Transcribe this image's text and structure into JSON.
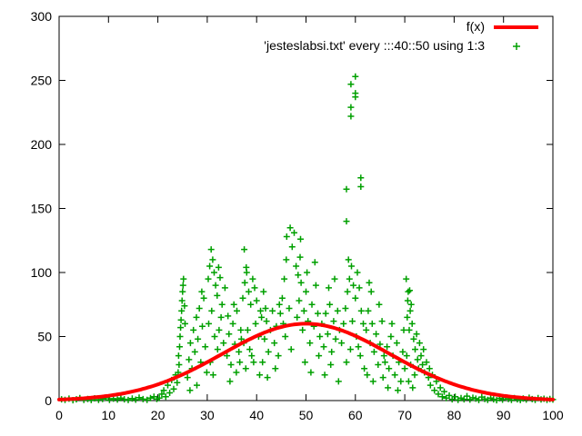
{
  "window": {
    "background": "#ffffff",
    "foreground": "#000000"
  },
  "chart_data": {
    "type": "scatter",
    "title": "",
    "xlabel": "",
    "ylabel": "",
    "xlim": [
      0,
      100
    ],
    "ylim": [
      0,
      300
    ],
    "x_ticks": [
      0,
      10,
      20,
      30,
      40,
      50,
      60,
      70,
      80,
      90,
      100
    ],
    "y_ticks": [
      0,
      50,
      100,
      150,
      200,
      250,
      300
    ],
    "grid": false,
    "legend_position": "top-right-inside",
    "series": [
      {
        "name": "f(x)",
        "type": "line",
        "color": "#ff0000",
        "line_width": 4,
        "curve": {
          "form": "gaussian",
          "amplitude": 60,
          "mean": 50,
          "sigma": 17
        }
      },
      {
        "name": "'jesteslabsi.txt' every :::40::50 using 1:3",
        "type": "points",
        "marker": "plus",
        "color": "#00a000",
        "marker_size": 7,
        "points": [
          [
            0.5,
            1
          ],
          [
            1.2,
            0.5
          ],
          [
            2,
            1.5
          ],
          [
            2.8,
            0.3
          ],
          [
            3.5,
            1
          ],
          [
            4.2,
            2
          ],
          [
            5,
            0.5
          ],
          [
            5.8,
            1.2
          ],
          [
            6.5,
            0.4
          ],
          [
            7.2,
            1.8
          ],
          [
            8,
            0.6
          ],
          [
            8.8,
            1.3
          ],
          [
            9.5,
            2.2
          ],
          [
            10.2,
            0.5
          ],
          [
            11,
            1.5
          ],
          [
            11.8,
            0.8
          ],
          [
            12.5,
            2
          ],
          [
            13.2,
            1
          ],
          [
            14,
            0.4
          ],
          [
            14.8,
            1.6
          ],
          [
            15.5,
            0.7
          ],
          [
            16.2,
            2.3
          ],
          [
            17,
            1.1
          ],
          [
            17.8,
            0.5
          ],
          [
            18.5,
            1.9
          ],
          [
            19.2,
            3
          ],
          [
            19.8,
            1.2
          ],
          [
            20.3,
            2
          ],
          [
            20.8,
            5
          ],
          [
            21.2,
            8
          ],
          [
            21.6,
            3
          ],
          [
            22,
            12
          ],
          [
            22.4,
            6
          ],
          [
            22.8,
            16
          ],
          [
            23.2,
            9
          ],
          [
            23.6,
            20
          ],
          [
            23.9,
            14
          ],
          [
            24.1,
            22
          ],
          [
            24.2,
            35
          ],
          [
            24.3,
            28
          ],
          [
            24.4,
            42
          ],
          [
            24.5,
            50
          ],
          [
            24.6,
            57
          ],
          [
            24.7,
            63
          ],
          [
            24.8,
            70
          ],
          [
            24.9,
            78
          ],
          [
            25,
            85
          ],
          [
            25.1,
            90
          ],
          [
            25.2,
            95
          ],
          [
            25.4,
            74
          ],
          [
            25.5,
            60
          ],
          [
            26,
            18
          ],
          [
            26.3,
            32
          ],
          [
            26.5,
            8
          ],
          [
            26.6,
            45
          ],
          [
            26.9,
            25
          ],
          [
            27.2,
            55
          ],
          [
            27.5,
            38
          ],
          [
            27.8,
            65
          ],
          [
            27.9,
            12
          ],
          [
            28.1,
            48
          ],
          [
            28.4,
            72
          ],
          [
            28.7,
            30
          ],
          [
            28.9,
            85
          ],
          [
            29,
            58
          ],
          [
            29.3,
            80
          ],
          [
            29.6,
            42
          ],
          [
            29.9,
            22
          ],
          [
            30.2,
            95
          ],
          [
            30.3,
            60
          ],
          [
            30.5,
            105
          ],
          [
            30.6,
            30
          ],
          [
            30.8,
            118
          ],
          [
            30.9,
            70
          ],
          [
            31.1,
            110
          ],
          [
            31.2,
            20
          ],
          [
            31.4,
            100
          ],
          [
            31.5,
            50
          ],
          [
            31.7,
            90
          ],
          [
            32,
            82
          ],
          [
            32.1,
            40
          ],
          [
            32.3,
            104
          ],
          [
            32.4,
            55
          ],
          [
            32.6,
            96
          ],
          [
            32.8,
            65
          ],
          [
            33,
            75
          ],
          [
            33.3,
            45
          ],
          [
            33.6,
            88
          ],
          [
            34,
            35
          ],
          [
            34.2,
            66
          ],
          [
            34.4,
            52
          ],
          [
            34.6,
            15
          ],
          [
            34.8,
            28
          ],
          [
            35.2,
            60
          ],
          [
            35.4,
            75
          ],
          [
            35.6,
            44
          ],
          [
            35.9,
            22
          ],
          [
            36,
            70
          ],
          [
            36.4,
            38
          ],
          [
            36.6,
            30
          ],
          [
            36.8,
            55
          ],
          [
            36.9,
            48
          ],
          [
            37.2,
            80
          ],
          [
            37.4,
            45
          ],
          [
            37.5,
            118
          ],
          [
            37.6,
            92
          ],
          [
            37.8,
            25
          ],
          [
            37.9,
            104
          ],
          [
            38,
            100
          ],
          [
            38.2,
            55
          ],
          [
            38.4,
            85
          ],
          [
            38.6,
            40
          ],
          [
            38.8,
            75
          ],
          [
            39,
            35
          ],
          [
            39.2,
            95
          ],
          [
            39.4,
            30
          ],
          [
            39.6,
            88
          ],
          [
            39.8,
            60
          ],
          [
            40,
            78
          ],
          [
            40.4,
            50
          ],
          [
            40.6,
            20
          ],
          [
            40.8,
            70
          ],
          [
            41,
            65
          ],
          [
            41.4,
            85
          ],
          [
            41.2,
            30
          ],
          [
            41.6,
            48
          ],
          [
            41.8,
            72
          ],
          [
            42,
            62
          ],
          [
            42.2,
            18
          ],
          [
            42.4,
            38
          ],
          [
            42.8,
            55
          ],
          [
            43.2,
            70
          ],
          [
            43.6,
            45
          ],
          [
            43.8,
            25
          ],
          [
            44,
            58
          ],
          [
            44.4,
            35
          ],
          [
            44.6,
            75
          ],
          [
            44.8,
            68
          ],
          [
            45.2,
            80
          ],
          [
            45.4,
            60
          ],
          [
            45.6,
            95
          ],
          [
            45.8,
            50
          ],
          [
            46,
            110
          ],
          [
            46.1,
            128
          ],
          [
            46.6,
            72
          ],
          [
            46.8,
            135
          ],
          [
            47,
            40
          ],
          [
            47.2,
            120
          ],
          [
            47.6,
            131
          ],
          [
            48,
            105
          ],
          [
            48.2,
            65
          ],
          [
            48.4,
            98
          ],
          [
            48.6,
            78
          ],
          [
            48.8,
            112
          ],
          [
            48.9,
            126
          ],
          [
            49,
            92
          ],
          [
            49.3,
            55
          ],
          [
            49.6,
            70
          ],
          [
            49.8,
            30
          ],
          [
            50,
            85
          ],
          [
            50.2,
            100
          ],
          [
            50.4,
            62
          ],
          [
            50.8,
            45
          ],
          [
            51,
            22
          ],
          [
            51.2,
            75
          ],
          [
            51.6,
            58
          ],
          [
            51.8,
            108
          ],
          [
            52,
            90
          ],
          [
            52.4,
            68
          ],
          [
            52.6,
            35
          ],
          [
            52.8,
            50
          ],
          [
            53.2,
            60
          ],
          [
            53.6,
            42
          ],
          [
            53.8,
            20
          ],
          [
            54,
            68
          ],
          [
            54.4,
            52
          ],
          [
            54.6,
            88
          ],
          [
            54.8,
            75
          ],
          [
            55,
            28
          ],
          [
            55.2,
            38
          ],
          [
            55.6,
            62
          ],
          [
            55.8,
            95
          ],
          [
            56,
            48
          ],
          [
            56.4,
            70
          ],
          [
            56.6,
            15
          ],
          [
            56.8,
            55
          ],
          [
            57.2,
            45
          ],
          [
            57.6,
            60
          ],
          [
            58,
            72
          ],
          [
            58.2,
            30
          ],
          [
            58.4,
            85
          ],
          [
            58.6,
            110
          ],
          [
            58.8,
            95
          ],
          [
            59,
            40
          ],
          [
            59.2,
            105
          ],
          [
            59.4,
            62
          ],
          [
            59.6,
            90
          ],
          [
            60,
            80
          ],
          [
            60.2,
            50
          ],
          [
            60.4,
            100
          ],
          [
            60.6,
            42
          ],
          [
            60.8,
            88
          ],
          [
            61,
            35
          ],
          [
            61.2,
            70
          ],
          [
            61.6,
            60
          ],
          [
            61.8,
            25
          ],
          [
            58.2,
            140
          ],
          [
            58.2,
            165
          ],
          [
            59.1,
            222
          ],
          [
            59.1,
            229
          ],
          [
            59.1,
            247
          ],
          [
            60,
            237
          ],
          [
            60,
            240
          ],
          [
            60,
            253
          ],
          [
            61.1,
            167
          ],
          [
            61.1,
            174
          ],
          [
            62.2,
            55
          ],
          [
            62.4,
            20
          ],
          [
            62.6,
            70
          ],
          [
            62.8,
            92
          ],
          [
            63,
            45
          ],
          [
            63.2,
            85
          ],
          [
            63.4,
            60
          ],
          [
            63.6,
            15
          ],
          [
            63.8,
            38
          ],
          [
            64.2,
            52
          ],
          [
            64.6,
            28
          ],
          [
            64.8,
            75
          ],
          [
            65,
            44
          ],
          [
            65.4,
            62
          ],
          [
            65.6,
            18
          ],
          [
            65.8,
            35
          ],
          [
            66,
            30
          ],
          [
            66.4,
            42
          ],
          [
            66.6,
            10
          ],
          [
            66.8,
            25
          ],
          [
            67.2,
            50
          ],
          [
            67.4,
            60
          ],
          [
            67.6,
            35
          ],
          [
            68,
            20
          ],
          [
            68.4,
            45
          ],
          [
            68.6,
            8
          ],
          [
            68.8,
            30
          ],
          [
            69.2,
            15
          ],
          [
            69.6,
            38
          ],
          [
            69.8,
            55
          ],
          [
            70,
            25
          ],
          [
            70.3,
            95
          ],
          [
            70.4,
            35
          ],
          [
            70.5,
            65
          ],
          [
            70.6,
            78
          ],
          [
            70.7,
            85
          ],
          [
            70.8,
            15
          ],
          [
            70.9,
            55
          ],
          [
            71,
            86
          ],
          [
            71.1,
            70
          ],
          [
            71.2,
            28
          ],
          [
            71.3,
            75
          ],
          [
            71.5,
            60
          ],
          [
            71.6,
            10
          ],
          [
            71.8,
            48
          ],
          [
            72,
            20
          ],
          [
            72.1,
            40
          ],
          [
            72.4,
            52
          ],
          [
            72.6,
            32
          ],
          [
            72.8,
            25
          ],
          [
            73,
            45
          ],
          [
            73.3,
            35
          ],
          [
            73.6,
            28
          ],
          [
            73.8,
            40
          ],
          [
            74,
            22
          ],
          [
            74.4,
            30
          ],
          [
            74.8,
            18
          ],
          [
            75,
            25
          ],
          [
            75.2,
            12
          ],
          [
            75.6,
            20
          ],
          [
            76,
            8
          ],
          [
            76.4,
            15
          ],
          [
            76.8,
            5
          ],
          [
            77.2,
            10
          ],
          [
            77.6,
            3
          ],
          [
            78,
            7
          ],
          [
            78.4,
            2
          ],
          [
            79,
            4
          ],
          [
            79.6,
            1
          ],
          [
            80.2,
            3
          ],
          [
            80.8,
            0.5
          ],
          [
            81.4,
            2
          ],
          [
            82,
            1
          ],
          [
            82.6,
            3.5
          ],
          [
            83.2,
            0.8
          ],
          [
            83.8,
            2.2
          ],
          [
            84.4,
            1.5
          ],
          [
            85,
            0.4
          ],
          [
            85.6,
            2.8
          ],
          [
            86.2,
            1.2
          ],
          [
            86.8,
            0.6
          ],
          [
            87.4,
            2
          ],
          [
            88,
            1
          ],
          [
            88.6,
            0.3
          ],
          [
            89.2,
            1.8
          ],
          [
            89.8,
            0.7
          ],
          [
            90.4,
            2.5
          ],
          [
            91,
            1.3
          ],
          [
            91.6,
            0.5
          ],
          [
            92.2,
            2
          ],
          [
            92.8,
            1
          ],
          [
            93.4,
            0.4
          ],
          [
            94,
            1.6
          ],
          [
            94.6,
            0.8
          ],
          [
            95.2,
            2.2
          ],
          [
            95.8,
            1.1
          ],
          [
            96.4,
            0.5
          ],
          [
            97,
            1.9
          ],
          [
            97.6,
            0.9
          ],
          [
            98.2,
            1.4
          ],
          [
            98.8,
            0.6
          ],
          [
            99.4,
            1.2
          ],
          [
            100,
            0.8
          ]
        ]
      }
    ]
  }
}
